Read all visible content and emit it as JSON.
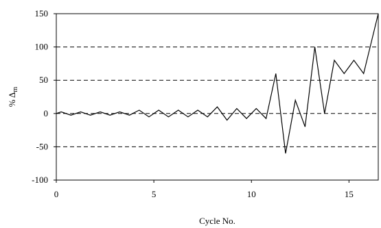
{
  "chart_data": {
    "type": "line",
    "xlabel": "Cycle No.",
    "ylabel": {
      "prefix": "% Δ",
      "subscript": "m"
    },
    "xlim": [
      0,
      16.5
    ],
    "ylim": [
      -100,
      150
    ],
    "xticks": [
      0,
      5,
      10,
      15
    ],
    "yticks": [
      -100,
      -50,
      0,
      50,
      100,
      150
    ],
    "xtick_labels": [
      "0",
      "5",
      "10",
      "15"
    ],
    "ytick_labels": [
      "-100",
      "-50",
      "0",
      "50",
      "100",
      "150"
    ],
    "gridlines": {
      "y": [
        -50,
        0,
        50,
        100
      ],
      "style": "dashed"
    },
    "line_color": "#000000",
    "series": [
      {
        "x": [
          0,
          0.25,
          0.75,
          1.25,
          1.75,
          2.25,
          2.75,
          3.25,
          3.75,
          4.25,
          4.75,
          5.25,
          5.75,
          6.25,
          6.75,
          7.25,
          7.75,
          8.25,
          8.75,
          9.25,
          9.75,
          10.25,
          10.75,
          11.25,
          11.75,
          12.25,
          12.75,
          13.25,
          13.75,
          14.25,
          14.75,
          15.25,
          15.75,
          16.5
        ],
        "y": [
          0,
          2.5,
          -2.5,
          2.5,
          -2.5,
          2.5,
          -2.5,
          2.5,
          -2.5,
          5,
          -5,
          5,
          -5,
          5,
          -5,
          5,
          -5,
          10,
          -10,
          7.5,
          -7.5,
          7.5,
          -7.5,
          60,
          -60,
          20,
          -20,
          100,
          0,
          80,
          60,
          80,
          60,
          150
        ]
      }
    ]
  }
}
